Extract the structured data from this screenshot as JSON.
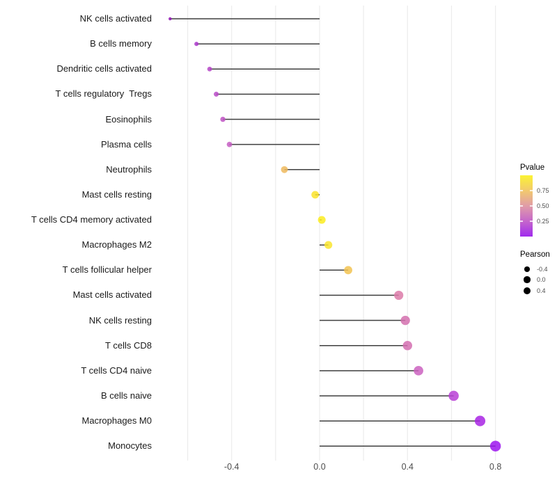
{
  "chart_data": {
    "type": "scatter",
    "variant": "horizontal-lollipop",
    "title": "",
    "xlabel": "",
    "ylabel": "",
    "xlim": [
      -0.72,
      0.85
    ],
    "grid": "vertical-only",
    "gridline_values": [
      -0.6,
      -0.4,
      -0.2,
      0.0,
      0.2,
      0.4,
      0.6,
      0.8
    ],
    "x_ticks": {
      "values": [
        -0.4,
        0.0,
        0.4,
        0.8
      ],
      "labels": [
        "-0.4",
        "0.0",
        "0.4",
        "0.8"
      ]
    },
    "categories": [
      "NK cells activated",
      "B cells memory",
      "Dendritic cells activated",
      "T cells regulatory  Tregs",
      "Eosinophils",
      "Plasma cells",
      "Neutrophils",
      "Mast cells resting",
      "T cells CD4 memory activated",
      "Macrophages M2",
      "T cells follicular helper",
      "Mast cells activated",
      "NK cells resting",
      "T cells CD8",
      "T cells CD4 naive",
      "B cells naive",
      "Macrophages M0",
      "Monocytes"
    ],
    "points": [
      {
        "label": "NK cells activated",
        "pearson": -0.68,
        "dot_color": "#9215B5"
      },
      {
        "label": "B cells memory",
        "pearson": -0.56,
        "dot_color": "#AC38CB"
      },
      {
        "label": "Dendritic cells activated",
        "pearson": -0.5,
        "dot_color": "#B545C7"
      },
      {
        "label": "T cells regulatory  Tregs",
        "pearson": -0.47,
        "dot_color": "#BA4CC8"
      },
      {
        "label": "Eosinophils",
        "pearson": -0.44,
        "dot_color": "#BF53C4"
      },
      {
        "label": "Plasma cells",
        "pearson": -0.41,
        "dot_color": "#C65EC3"
      },
      {
        "label": "Neutrophils",
        "pearson": -0.16,
        "dot_color": "#EFBA5E"
      },
      {
        "label": "Mast cells resting",
        "pearson": -0.02,
        "dot_color": "#FAE32B"
      },
      {
        "label": "T cells CD4 memory activated",
        "pearson": 0.01,
        "dot_color": "#FCEC20"
      },
      {
        "label": "Macrophages M2",
        "pearson": 0.04,
        "dot_color": "#F9E52E"
      },
      {
        "label": "T cells follicular helper",
        "pearson": 0.13,
        "dot_color": "#F2C351"
      },
      {
        "label": "Mast cells activated",
        "pearson": 0.36,
        "dot_color": "#DC7AA8"
      },
      {
        "label": "NK cells resting",
        "pearson": 0.39,
        "dot_color": "#D470AE"
      },
      {
        "label": "T cells CD8",
        "pearson": 0.4,
        "dot_color": "#D36FB0"
      },
      {
        "label": "T cells CD4 naive",
        "pearson": 0.45,
        "dot_color": "#CB62BF"
      },
      {
        "label": "B cells naive",
        "pearson": 0.61,
        "dot_color": "#B940D6"
      },
      {
        "label": "Macrophages M0",
        "pearson": 0.73,
        "dot_color": "#A825E4"
      },
      {
        "label": "Monocytes",
        "pearson": 0.8,
        "dot_color": "#9C15EF"
      }
    ],
    "colors": {
      "stem": "#3F3F3F",
      "gridline": "#ECECEC",
      "background": "#FFFFFF",
      "axis_text": "#4D4D4D",
      "category_text": "#1A1A1A"
    },
    "legend": {
      "position": "right",
      "pvalue": {
        "title": "Pvalue",
        "tick_values": [
          0.75,
          0.5,
          0.25
        ],
        "tick_labels": [
          "0.75",
          "0.50",
          "0.25"
        ],
        "bar_range_top_to_bottom": [
          1.0,
          0.0
        ],
        "gradient_top_to_bottom": [
          "#FBF334",
          "#F2C96E",
          "#E09CA8",
          "#C566CB",
          "#A02BEE"
        ]
      },
      "pearson": {
        "title": "Pearson",
        "dot_color": "#000000",
        "entries": [
          {
            "label": "-0.4",
            "value": -0.4
          },
          {
            "label": "0.0",
            "value": 0.0
          },
          {
            "label": "0.4",
            "value": 0.4
          }
        ]
      }
    }
  }
}
